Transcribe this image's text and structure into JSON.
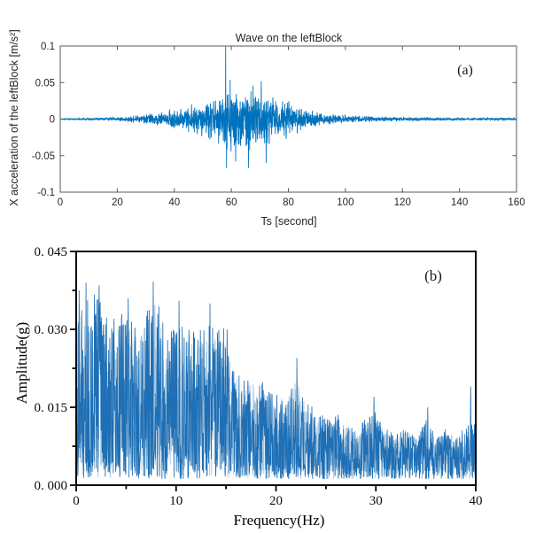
{
  "page": {
    "background": "#ffffff"
  },
  "chart_data": [
    {
      "id": "a",
      "type": "line",
      "style": "matlab-time-series",
      "title": "Wave on the leftBlock",
      "xlabel": "Ts [second]",
      "ylabel": "X acceleration of the leftBlock [m/s²]",
      "annotation": "(a)",
      "legend": null,
      "grid": false,
      "xlim": [
        0,
        160
      ],
      "ylim": [
        -0.1,
        0.1
      ],
      "xticks": [
        0,
        20,
        40,
        60,
        80,
        100,
        120,
        140,
        160
      ],
      "xtick_labels": [
        "0",
        "20",
        "40",
        "60",
        "80",
        "100",
        "120",
        "140",
        "160"
      ],
      "yticks": [
        -0.1,
        -0.05,
        0,
        0.05,
        0.1
      ],
      "ytick_labels": [
        "-0.1",
        "-0.05",
        "0",
        "0.05",
        "0.1"
      ],
      "line_color": "#0072BD",
      "axis_color": "#5a5a5a",
      "signal": {
        "kind": "random-noise-burst",
        "points": 2600,
        "seed": 20231,
        "envelope_t": [
          0,
          5,
          10,
          15,
          20,
          24,
          28,
          32,
          36,
          40,
          44,
          48,
          52,
          55,
          58,
          61,
          64,
          67,
          70,
          73,
          76,
          79,
          82,
          85,
          88,
          92,
          96,
          100,
          105,
          110,
          115,
          120,
          130,
          140,
          150,
          160
        ],
        "envelope_amp": [
          0.0006,
          0.0008,
          0.0012,
          0.0018,
          0.0025,
          0.004,
          0.006,
          0.008,
          0.01,
          0.013,
          0.016,
          0.021,
          0.026,
          0.032,
          0.04,
          0.042,
          0.04,
          0.043,
          0.04,
          0.036,
          0.032,
          0.027,
          0.021,
          0.015,
          0.011,
          0.008,
          0.006,
          0.0055,
          0.0045,
          0.0035,
          0.003,
          0.0028,
          0.0022,
          0.002,
          0.0018,
          0.0018
        ],
        "spikes": [
          {
            "t": 58.0,
            "y": 0.1
          },
          {
            "t": 58.3,
            "y": -0.067
          },
          {
            "t": 59.6,
            "y": 0.054
          },
          {
            "t": 61.5,
            "y": -0.058
          },
          {
            "t": 66.0,
            "y": -0.067
          },
          {
            "t": 70.5,
            "y": 0.052
          },
          {
            "t": 72.2,
            "y": -0.06
          }
        ]
      }
    },
    {
      "id": "b",
      "type": "line",
      "style": "origin-spectrum",
      "title": null,
      "xlabel": "Frequency(Hz)",
      "ylabel": "Amplitude(g)",
      "annotation": "(b)",
      "legend": null,
      "grid": false,
      "xlim": [
        0,
        40
      ],
      "ylim": [
        0,
        0.045
      ],
      "xticks": [
        0,
        10,
        20,
        30,
        40
      ],
      "xtick_labels": [
        "0",
        "10",
        "20",
        "30",
        "40"
      ],
      "xminorticks": [
        5,
        15,
        25,
        35
      ],
      "yticks": [
        0,
        0.015,
        0.03,
        0.045
      ],
      "ytick_labels": [
        "0. 000",
        "0. 015",
        "0. 030",
        "0. 045"
      ],
      "yminorticks": [
        0.0075,
        0.0225,
        0.0375
      ],
      "line_color": "#1E6FB5",
      "line_color_light": "#A6C4DD",
      "axis_color": "#000000",
      "spectrum": {
        "kind": "noise-spectrum",
        "points": 1500,
        "seed": 7717,
        "floor": 0.0012,
        "envelope_f": [
          0,
          1,
          2,
          3,
          4,
          5,
          6,
          7,
          8,
          9,
          10,
          11,
          12,
          13,
          14,
          15,
          16,
          17,
          18,
          19,
          20,
          21,
          22,
          23,
          24,
          25,
          26,
          27,
          28,
          29,
          30,
          31,
          32,
          33,
          34,
          35,
          36,
          37,
          38,
          39,
          40
        ],
        "envelope_amp": [
          0.037,
          0.036,
          0.038,
          0.034,
          0.032,
          0.034,
          0.031,
          0.033,
          0.038,
          0.03,
          0.03,
          0.032,
          0.029,
          0.031,
          0.033,
          0.03,
          0.022,
          0.02,
          0.022,
          0.019,
          0.019,
          0.017,
          0.023,
          0.016,
          0.015,
          0.013,
          0.014,
          0.012,
          0.011,
          0.013,
          0.015,
          0.011,
          0.01,
          0.011,
          0.01,
          0.013,
          0.01,
          0.011,
          0.01,
          0.011,
          0.013
        ],
        "peaks": [
          {
            "f": 0.3,
            "y": 0.0375
          },
          {
            "f": 1.0,
            "y": 0.039
          },
          {
            "f": 2.3,
            "y": 0.0385
          },
          {
            "f": 5.2,
            "y": 0.036
          },
          {
            "f": 7.7,
            "y": 0.0392
          },
          {
            "f": 10.3,
            "y": 0.0355
          },
          {
            "f": 13.4,
            "y": 0.035
          },
          {
            "f": 15.1,
            "y": 0.03
          },
          {
            "f": 22.1,
            "y": 0.0245
          },
          {
            "f": 29.8,
            "y": 0.017
          },
          {
            "f": 35.2,
            "y": 0.015
          },
          {
            "f": 39.5,
            "y": 0.019
          }
        ]
      }
    }
  ]
}
